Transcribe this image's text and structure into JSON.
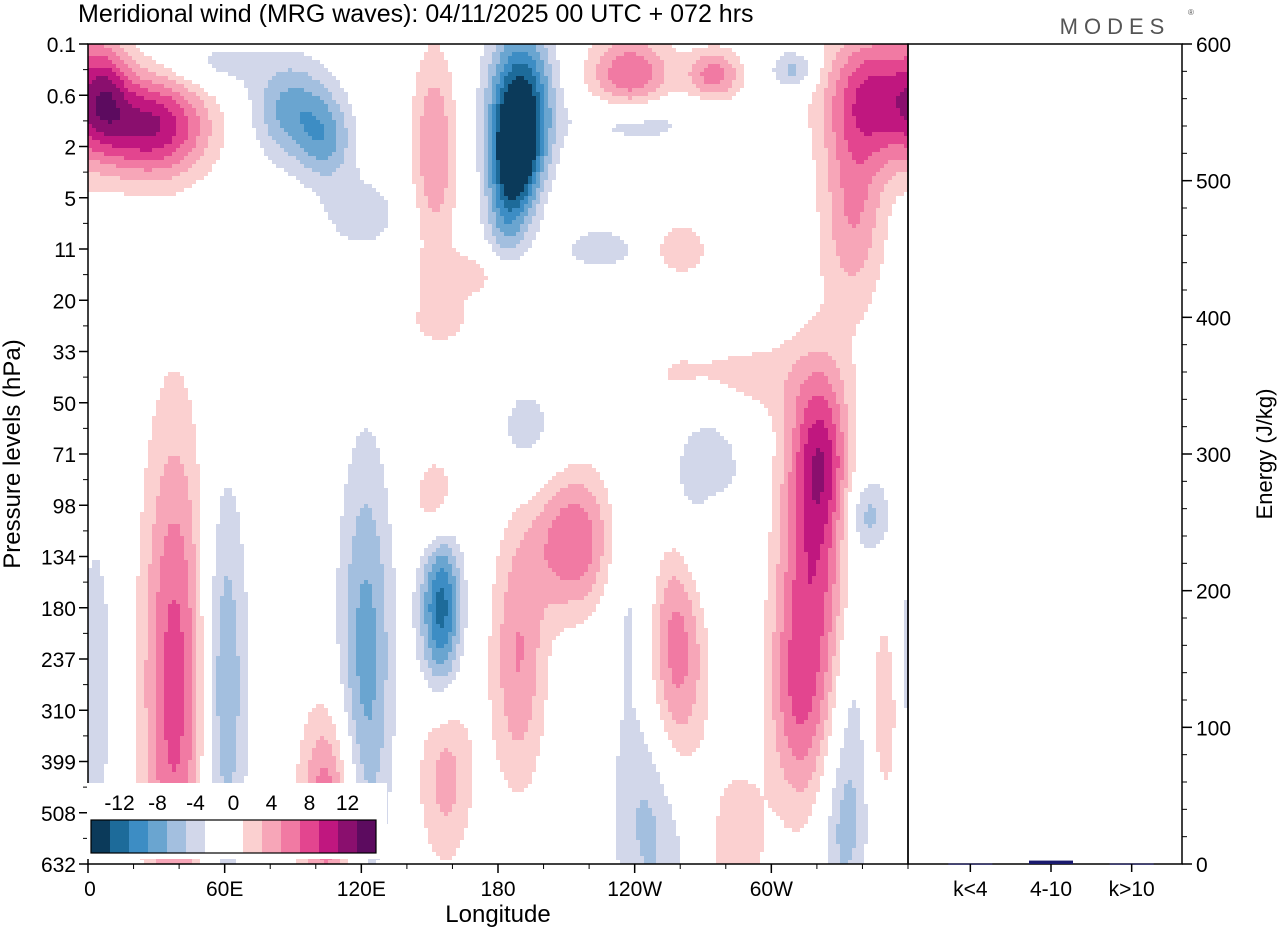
{
  "chart_data": {
    "type": "heatmap",
    "title": "Meridional wind (MRG waves):  04/11/2025  00 UTC  + 072 hrs",
    "logo": "MODES",
    "xlabel": "Longitude",
    "ylabel": "Pressure levels (hPa)",
    "y2label": "Energy (J/kg)",
    "x_ticks": [
      "0",
      "60E",
      "120E",
      "180",
      "120W",
      "60W"
    ],
    "x_tick_values": [
      0,
      60,
      120,
      180,
      240,
      300
    ],
    "xlim": [
      0,
      360
    ],
    "y_ticks": [
      "0.1",
      "0.6",
      "2",
      "5",
      "11",
      "20",
      "33",
      "50",
      "71",
      "98",
      "134",
      "180",
      "237",
      "310",
      "399",
      "508",
      "632"
    ],
    "y2_ticks": [
      0,
      100,
      200,
      300,
      400,
      500,
      600
    ],
    "y2lim": [
      0,
      600
    ],
    "colorbar": {
      "labels": [
        "-12",
        "-8",
        "-4",
        "0",
        "4",
        "8",
        "12"
      ],
      "colors": [
        "#0b3a5a",
        "#1d6b9a",
        "#3d8dc4",
        "#6aa5d0",
        "#a3bfdf",
        "#d2d7ea",
        "#ffffff",
        "#ffffff",
        "#fbd0d0",
        "#f7a6b8",
        "#f17aa3",
        "#e3458f",
        "#c0177f",
        "#8a0f6e",
        "#5c0b5f"
      ]
    },
    "blobs": [
      {
        "lon": 28,
        "lev": 1.6,
        "wlon": 25,
        "wlev": 1.0,
        "v": 12
      },
      {
        "lon": 8,
        "lev": 0.9,
        "wlon": 10,
        "wlev": 1.0,
        "v": 5
      },
      {
        "lon": 55,
        "lev": 0.4,
        "wlon": 22,
        "wlev": 0.5,
        "v": -3
      },
      {
        "lon": 90,
        "lev": 1.3,
        "wlon": 18,
        "wlev": 1.0,
        "v": -7
      },
      {
        "lon": 105,
        "lev": 1.9,
        "wlon": 12,
        "wlev": 0.8,
        "v": -5
      },
      {
        "lon": 120,
        "lev": 3.3,
        "wlon": 20,
        "wlev": 0.8,
        "v": -3
      },
      {
        "lon": 152,
        "lev": 2.1,
        "wlon": 10,
        "wlev": 2.0,
        "v": 6
      },
      {
        "lon": 190,
        "lev": 1.1,
        "wlon": 14,
        "wlev": 1.5,
        "v": -12
      },
      {
        "lon": 188,
        "lev": 2.1,
        "wlon": 10,
        "wlev": 1.0,
        "v": -11
      },
      {
        "lon": 184,
        "lev": 3.3,
        "wlon": 10,
        "wlev": 1.2,
        "v": -6
      },
      {
        "lon": 238,
        "lev": 0.6,
        "wlon": 18,
        "wlev": 0.8,
        "v": 8
      },
      {
        "lon": 275,
        "lev": 0.6,
        "wlon": 12,
        "wlev": 0.5,
        "v": 7
      },
      {
        "lon": 310,
        "lev": 0.5,
        "wlon": 10,
        "wlev": 0.4,
        "v": -5
      },
      {
        "lon": 348,
        "lev": 1.0,
        "wlon": 24,
        "wlev": 1.3,
        "v": 10
      },
      {
        "lon": 336,
        "lev": 3.2,
        "wlon": 14,
        "wlev": 2.0,
        "v": 6
      },
      {
        "lon": 240,
        "lev": 1.5,
        "wlon": 26,
        "wlev": 0.5,
        "v": -4
      },
      {
        "lon": 260,
        "lev": 4.0,
        "wlon": 12,
        "wlev": 0.5,
        "v": 4
      },
      {
        "lon": 225,
        "lev": 4.0,
        "wlon": 20,
        "wlev": 0.5,
        "v": -3
      },
      {
        "lon": 170,
        "lev": 4.5,
        "wlon": 24,
        "wlev": 0.5,
        "v": 3
      },
      {
        "lon": 155,
        "lev": 5.4,
        "wlon": 14,
        "wlev": 0.5,
        "v": 3
      },
      {
        "lon": 280,
        "lev": 6.5,
        "wlon": 40,
        "wlev": 0.8,
        "v": 3
      },
      {
        "lon": 322,
        "lev": 8.0,
        "wlon": 12,
        "wlev": 1.6,
        "v": 7
      },
      {
        "lon": 342,
        "lev": 9.2,
        "wlon": 10,
        "wlev": 0.8,
        "v": -5
      },
      {
        "lon": 38,
        "lev": 12.5,
        "wlon": 14,
        "wlev": 5.0,
        "v": 9
      },
      {
        "lon": 3,
        "lev": 12.5,
        "wlon": 8,
        "wlev": 3.0,
        "v": -4
      },
      {
        "lon": 60,
        "lev": 12.5,
        "wlon": 10,
        "wlev": 4.0,
        "v": -6
      },
      {
        "lon": 105,
        "lev": 15.0,
        "wlon": 12,
        "wlev": 2.0,
        "v": 8
      },
      {
        "lon": 122,
        "lev": 12.0,
        "wlon": 12,
        "wlev": 4.0,
        "v": -7
      },
      {
        "lon": 155,
        "lev": 11.0,
        "wlon": 9,
        "wlev": 1.7,
        "v": -11
      },
      {
        "lon": 153,
        "lev": 9.0,
        "wlon": 10,
        "wlev": 1.0,
        "v": 5
      },
      {
        "lon": 193,
        "lev": 7.6,
        "wlon": 16,
        "wlev": 1.2,
        "v": -3
      },
      {
        "lon": 213,
        "lev": 9.7,
        "wlon": 18,
        "wlev": 1.4,
        "v": 8
      },
      {
        "lon": 189,
        "lev": 12.0,
        "wlon": 12,
        "wlev": 2.5,
        "v": 6
      },
      {
        "lon": 258,
        "lev": 11.5,
        "wlon": 14,
        "wlev": 3.5,
        "v": 9
      },
      {
        "lon": 265,
        "lev": 9.0,
        "wlon": 20,
        "wlev": 2.0,
        "v": -7
      },
      {
        "lon": 240,
        "lev": 11.0,
        "wlon": 12,
        "wlev": 2.0,
        "v": -3
      },
      {
        "lon": 276,
        "lev": 9.4,
        "wlon": 10,
        "wlev": 0.8,
        "v": 4
      },
      {
        "lon": 250,
        "lev": 15.0,
        "wlon": 18,
        "wlev": 2.5,
        "v": -6
      },
      {
        "lon": 318,
        "lev": 10.5,
        "wlon": 16,
        "wlev": 3.5,
        "v": 9
      },
      {
        "lon": 310,
        "lev": 13.0,
        "wlon": 12,
        "wlev": 2.0,
        "v": 4
      },
      {
        "lon": 335,
        "lev": 13.5,
        "wlon": 10,
        "wlev": 3.0,
        "v": -4
      },
      {
        "lon": 350,
        "lev": 13.0,
        "wlon": 8,
        "wlev": 2.0,
        "v": 4
      },
      {
        "lon": 157,
        "lev": 14.2,
        "wlon": 12,
        "wlev": 1.8,
        "v": 5
      },
      {
        "lon": 285,
        "lev": 15.6,
        "wlon": 12,
        "wlev": 1.5,
        "v": 4
      },
      {
        "lon": 330,
        "lev": 15.5,
        "wlon": 10,
        "wlev": 1.5,
        "v": -3
      }
    ],
    "energy_categories": [
      "k<4",
      "4-10",
      "k>10"
    ],
    "energy_values": [
      0.3,
      2.5,
      0.3
    ],
    "energy_bar_color": "#1a1a6e"
  }
}
